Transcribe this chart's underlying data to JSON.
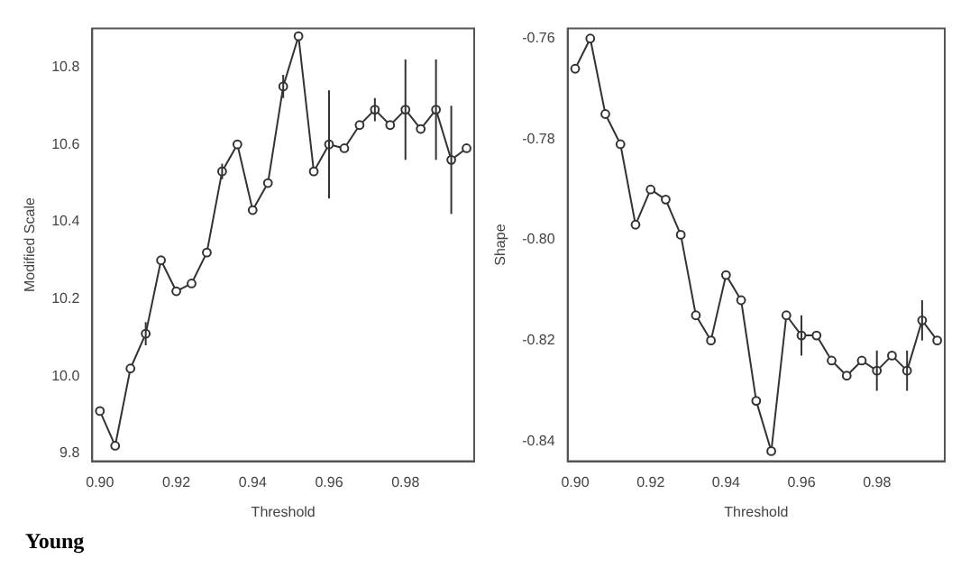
{
  "chart_data": [
    {
      "type": "line",
      "xlabel": "Threshold",
      "ylabel": "Modified Scale",
      "annotations": [
        "Young"
      ],
      "marker": "circle",
      "grid": false,
      "legend": false,
      "x": [
        0.9,
        0.904,
        0.908,
        0.912,
        0.916,
        0.92,
        0.924,
        0.928,
        0.932,
        0.936,
        0.94,
        0.944,
        0.948,
        0.952,
        0.956,
        0.96,
        0.964,
        0.968,
        0.972,
        0.976,
        0.98,
        0.984,
        0.988,
        0.992,
        0.996
      ],
      "series": [
        {
          "color": "#333333",
          "values": [
            9.91,
            9.82,
            10.02,
            10.11,
            10.3,
            10.22,
            10.24,
            10.32,
            10.53,
            10.6,
            10.43,
            10.5,
            10.75,
            10.88,
            10.53,
            10.6,
            10.59,
            10.65,
            10.69,
            10.65,
            10.69,
            10.64,
            10.69,
            10.56,
            10.59
          ],
          "errors": [
            null,
            null,
            null,
            0.03,
            null,
            null,
            null,
            null,
            0.02,
            null,
            null,
            null,
            0.03,
            null,
            null,
            0.14,
            null,
            null,
            0.03,
            null,
            0.13,
            null,
            0.13,
            0.14,
            null
          ]
        }
      ],
      "xlim": [
        0.898,
        0.998
      ],
      "xticks": [
        {
          "value": 0.9,
          "label": "0.90"
        },
        0.92,
        0.94,
        0.96,
        0.98
      ],
      "ylim": [
        9.78,
        10.9
      ],
      "yticks": [
        9.8,
        {
          "value": 10,
          "label": "10.0"
        },
        10.2,
        10.4,
        10.6,
        10.8
      ]
    },
    {
      "type": "line",
      "xlabel": "Threshold",
      "ylabel": "Shape",
      "marker": "circle",
      "grid": false,
      "legend": false,
      "x": [
        0.9,
        0.904,
        0.908,
        0.912,
        0.916,
        0.92,
        0.924,
        0.928,
        0.932,
        0.936,
        0.94,
        0.944,
        0.948,
        0.952,
        0.956,
        0.96,
        0.964,
        0.968,
        0.972,
        0.976,
        0.98,
        0.984,
        0.988,
        0.992,
        0.996
      ],
      "series": [
        {
          "color": "#333333",
          "values": [
            -0.766,
            -0.76,
            -0.775,
            -0.781,
            -0.797,
            -0.79,
            -0.792,
            -0.799,
            -0.815,
            -0.82,
            -0.807,
            -0.812,
            -0.832,
            -0.842,
            -0.815,
            -0.819,
            -0.819,
            -0.824,
            -0.827,
            -0.824,
            -0.826,
            -0.823,
            -0.826,
            -0.816,
            -0.82
          ],
          "errors": [
            null,
            null,
            null,
            null,
            null,
            null,
            null,
            null,
            null,
            null,
            null,
            null,
            null,
            null,
            null,
            0.004,
            null,
            null,
            null,
            null,
            0.004,
            null,
            0.004,
            0.004,
            null
          ]
        }
      ],
      "xlim": [
        0.898,
        0.998
      ],
      "xticks": [
        {
          "value": 0.9,
          "label": "0.90"
        },
        0.92,
        0.94,
        0.96,
        0.98
      ],
      "ylim": [
        -0.844,
        -0.758
      ],
      "yticks": [
        -0.84,
        -0.82,
        {
          "value": -0.8,
          "label": "-0.80"
        },
        -0.78,
        -0.76
      ]
    }
  ]
}
